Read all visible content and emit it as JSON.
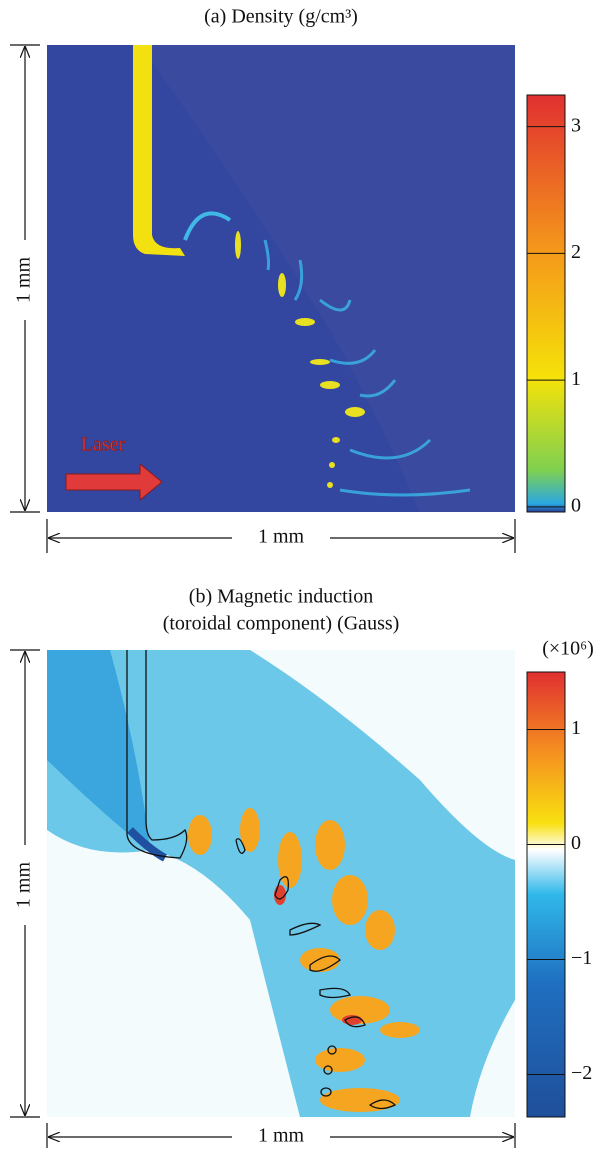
{
  "chart_data": [
    {
      "type": "heatmap",
      "title": "(a) Density (g/cm³)",
      "xlabel": "1 mm",
      "ylabel": "1 mm",
      "annotation": "Laser",
      "ylim": [
        -0.04,
        3.25
      ],
      "yticks": [
        0,
        1,
        2,
        3
      ]
    },
    {
      "type": "heatmap",
      "title": "(b) Magnetic induction",
      "subtitle": "(toroidal component) (Gauss)",
      "scale_label": "(×10⁶)",
      "xlabel": "1 mm",
      "ylabel": "1 mm",
      "ylim": [
        -2.37,
        1.5
      ],
      "yticks": [
        {
          "value": -2,
          "label": "−2"
        },
        {
          "value": -1,
          "label": "−1"
        },
        0,
        1
      ]
    }
  ]
}
